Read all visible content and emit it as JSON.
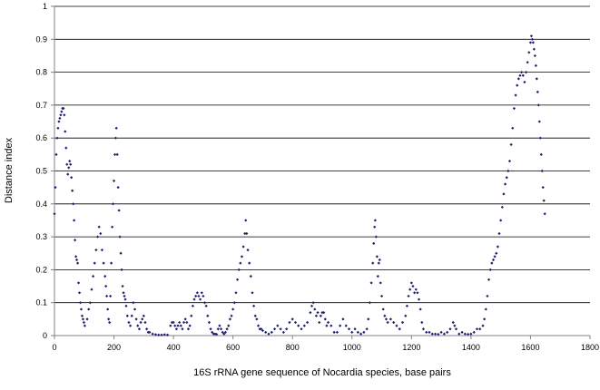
{
  "chart_data": {
    "type": "scatter",
    "title": "",
    "xlabel": "16S rRNA gene sequence of Nocardia species, base pairs",
    "ylabel": "Distance index",
    "xlim": [
      0,
      1800
    ],
    "ylim": [
      0,
      1
    ],
    "xticks": [
      0,
      200,
      400,
      600,
      800,
      1000,
      1200,
      1400,
      1600,
      1800
    ],
    "yticks": [
      0,
      0.1,
      0.2,
      0.3,
      0.4,
      0.5,
      0.6,
      0.7,
      0.8,
      0.9,
      1
    ],
    "grid": "horizontal",
    "legend": "none",
    "marker_color": "#1a1f6e",
    "series": [
      {
        "points": [
          [
            0,
            0.37
          ],
          [
            3,
            0.45
          ],
          [
            6,
            0.55
          ],
          [
            9,
            0.6
          ],
          [
            12,
            0.63
          ],
          [
            15,
            0.65
          ],
          [
            18,
            0.66
          ],
          [
            21,
            0.67
          ],
          [
            24,
            0.68
          ],
          [
            27,
            0.69
          ],
          [
            30,
            0.69
          ],
          [
            33,
            0.67
          ],
          [
            36,
            0.62
          ],
          [
            39,
            0.57
          ],
          [
            42,
            0.52
          ],
          [
            45,
            0.49
          ],
          [
            48,
            0.51
          ],
          [
            51,
            0.53
          ],
          [
            54,
            0.52
          ],
          [
            57,
            0.48
          ],
          [
            60,
            0.44
          ],
          [
            63,
            0.4
          ],
          [
            66,
            0.35
          ],
          [
            69,
            0.29
          ],
          [
            72,
            0.24
          ],
          [
            75,
            0.23
          ],
          [
            78,
            0.22
          ],
          [
            81,
            0.16
          ],
          [
            84,
            0.13
          ],
          [
            87,
            0.1
          ],
          [
            90,
            0.08
          ],
          [
            93,
            0.06
          ],
          [
            96,
            0.05
          ],
          [
            99,
            0.04
          ],
          [
            102,
            0.03
          ],
          [
            110,
            0.05
          ],
          [
            115,
            0.08
          ],
          [
            120,
            0.1
          ],
          [
            125,
            0.14
          ],
          [
            130,
            0.18
          ],
          [
            135,
            0.22
          ],
          [
            140,
            0.26
          ],
          [
            145,
            0.3
          ],
          [
            150,
            0.33
          ],
          [
            155,
            0.31
          ],
          [
            160,
            0.26
          ],
          [
            165,
            0.22
          ],
          [
            170,
            0.18
          ],
          [
            173,
            0.15
          ],
          [
            176,
            0.12
          ],
          [
            179,
            0.08
          ],
          [
            182,
            0.05
          ],
          [
            185,
            0.04
          ],
          [
            188,
            0.12
          ],
          [
            191,
            0.22
          ],
          [
            194,
            0.33
          ],
          [
            197,
            0.4
          ],
          [
            200,
            0.47
          ],
          [
            203,
            0.55
          ],
          [
            206,
            0.6
          ],
          [
            208,
            0.63
          ],
          [
            211,
            0.55
          ],
          [
            214,
            0.45
          ],
          [
            217,
            0.38
          ],
          [
            220,
            0.3
          ],
          [
            223,
            0.25
          ],
          [
            226,
            0.2
          ],
          [
            229,
            0.15
          ],
          [
            232,
            0.13
          ],
          [
            235,
            0.12
          ],
          [
            238,
            0.11
          ],
          [
            241,
            0.09
          ],
          [
            245,
            0.06
          ],
          [
            250,
            0.04
          ],
          [
            255,
            0.03
          ],
          [
            260,
            0.06
          ],
          [
            265,
            0.1
          ],
          [
            270,
            0.08
          ],
          [
            275,
            0.05
          ],
          [
            280,
            0.03
          ],
          [
            285,
            0.02
          ],
          [
            290,
            0.04
          ],
          [
            295,
            0.05
          ],
          [
            300,
            0.06
          ],
          [
            305,
            0.04
          ],
          [
            310,
            0.02
          ],
          [
            315,
            0.01
          ],
          [
            320,
            0.01
          ],
          [
            330,
            0.005
          ],
          [
            340,
            0.003
          ],
          [
            350,
            0.002
          ],
          [
            360,
            0.002
          ],
          [
            370,
            0.003
          ],
          [
            380,
            0.002
          ],
          [
            390,
            0.03
          ],
          [
            395,
            0.04
          ],
          [
            400,
            0.04
          ],
          [
            405,
            0.03
          ],
          [
            410,
            0.02
          ],
          [
            415,
            0.03
          ],
          [
            420,
            0.04
          ],
          [
            425,
            0.03
          ],
          [
            430,
            0.02
          ],
          [
            435,
            0.04
          ],
          [
            440,
            0.05
          ],
          [
            445,
            0.04
          ],
          [
            450,
            0.02
          ],
          [
            455,
            0.03
          ],
          [
            460,
            0.06
          ],
          [
            465,
            0.09
          ],
          [
            470,
            0.11
          ],
          [
            475,
            0.12
          ],
          [
            480,
            0.13
          ],
          [
            485,
            0.12
          ],
          [
            490,
            0.11
          ],
          [
            495,
            0.13
          ],
          [
            500,
            0.12
          ],
          [
            505,
            0.1
          ],
          [
            510,
            0.09
          ],
          [
            515,
            0.06
          ],
          [
            520,
            0.04
          ],
          [
            525,
            0.02
          ],
          [
            530,
            0.01
          ],
          [
            535,
            0.005
          ],
          [
            540,
            0.005
          ],
          [
            545,
            0.004
          ],
          [
            550,
            0.02
          ],
          [
            555,
            0.03
          ],
          [
            560,
            0.02
          ],
          [
            565,
            0.01
          ],
          [
            570,
            0.005
          ],
          [
            575,
            0.01
          ],
          [
            580,
            0.02
          ],
          [
            585,
            0.03
          ],
          [
            590,
            0.05
          ],
          [
            595,
            0.06
          ],
          [
            600,
            0.08
          ],
          [
            605,
            0.1
          ],
          [
            610,
            0.13
          ],
          [
            615,
            0.17
          ],
          [
            620,
            0.2
          ],
          [
            625,
            0.22
          ],
          [
            630,
            0.24
          ],
          [
            635,
            0.27
          ],
          [
            640,
            0.31
          ],
          [
            643,
            0.35
          ],
          [
            646,
            0.31
          ],
          [
            650,
            0.26
          ],
          [
            655,
            0.22
          ],
          [
            660,
            0.18
          ],
          [
            665,
            0.13
          ],
          [
            670,
            0.09
          ],
          [
            675,
            0.06
          ],
          [
            680,
            0.05
          ],
          [
            685,
            0.03
          ],
          [
            690,
            0.02
          ],
          [
            695,
            0.02
          ],
          [
            700,
            0.015
          ],
          [
            710,
            0.01
          ],
          [
            720,
            0.005
          ],
          [
            730,
            0.01
          ],
          [
            740,
            0.02
          ],
          [
            750,
            0.03
          ],
          [
            760,
            0.02
          ],
          [
            770,
            0.01
          ],
          [
            780,
            0.02
          ],
          [
            790,
            0.04
          ],
          [
            800,
            0.05
          ],
          [
            810,
            0.04
          ],
          [
            820,
            0.03
          ],
          [
            830,
            0.02
          ],
          [
            840,
            0.03
          ],
          [
            850,
            0.04
          ],
          [
            860,
            0.07
          ],
          [
            865,
            0.09
          ],
          [
            870,
            0.1
          ],
          [
            875,
            0.08
          ],
          [
            880,
            0.06
          ],
          [
            885,
            0.07
          ],
          [
            890,
            0.04
          ],
          [
            895,
            0.06
          ],
          [
            900,
            0.07
          ],
          [
            905,
            0.07
          ],
          [
            910,
            0.05
          ],
          [
            915,
            0.03
          ],
          [
            920,
            0.04
          ],
          [
            930,
            0.03
          ],
          [
            940,
            0.01
          ],
          [
            950,
            0.01
          ],
          [
            960,
            0.03
          ],
          [
            970,
            0.05
          ],
          [
            980,
            0.03
          ],
          [
            990,
            0.02
          ],
          [
            1000,
            0.01
          ],
          [
            1010,
            0.02
          ],
          [
            1020,
            0.01
          ],
          [
            1030,
            0.005
          ],
          [
            1040,
            0.01
          ],
          [
            1050,
            0.02
          ],
          [
            1055,
            0.05
          ],
          [
            1060,
            0.1
          ],
          [
            1065,
            0.16
          ],
          [
            1070,
            0.22
          ],
          [
            1073,
            0.28
          ],
          [
            1076,
            0.33
          ],
          [
            1078,
            0.35
          ],
          [
            1081,
            0.3
          ],
          [
            1084,
            0.24
          ],
          [
            1087,
            0.18
          ],
          [
            1090,
            0.22
          ],
          [
            1093,
            0.23
          ],
          [
            1096,
            0.16
          ],
          [
            1100,
            0.12
          ],
          [
            1105,
            0.08
          ],
          [
            1110,
            0.06
          ],
          [
            1115,
            0.05
          ],
          [
            1120,
            0.04
          ],
          [
            1130,
            0.05
          ],
          [
            1140,
            0.04
          ],
          [
            1150,
            0.03
          ],
          [
            1160,
            0.02
          ],
          [
            1170,
            0.04
          ],
          [
            1180,
            0.06
          ],
          [
            1185,
            0.09
          ],
          [
            1190,
            0.12
          ],
          [
            1195,
            0.14
          ],
          [
            1200,
            0.16
          ],
          [
            1205,
            0.15
          ],
          [
            1210,
            0.13
          ],
          [
            1215,
            0.14
          ],
          [
            1220,
            0.13
          ],
          [
            1225,
            0.11
          ],
          [
            1230,
            0.08
          ],
          [
            1235,
            0.04
          ],
          [
            1240,
            0.02
          ],
          [
            1250,
            0.01
          ],
          [
            1260,
            0.01
          ],
          [
            1270,
            0.005
          ],
          [
            1280,
            0.005
          ],
          [
            1290,
            0.004
          ],
          [
            1300,
            0.01
          ],
          [
            1310,
            0.005
          ],
          [
            1320,
            0.01
          ],
          [
            1330,
            0.02
          ],
          [
            1340,
            0.04
          ],
          [
            1345,
            0.03
          ],
          [
            1350,
            0.02
          ],
          [
            1360,
            0.005
          ],
          [
            1370,
            0.01
          ],
          [
            1380,
            0.005
          ],
          [
            1390,
            0.004
          ],
          [
            1400,
            0.005
          ],
          [
            1410,
            0.01
          ],
          [
            1420,
            0.02
          ],
          [
            1430,
            0.02
          ],
          [
            1440,
            0.03
          ],
          [
            1445,
            0.05
          ],
          [
            1450,
            0.08
          ],
          [
            1455,
            0.12
          ],
          [
            1460,
            0.17
          ],
          [
            1465,
            0.2
          ],
          [
            1470,
            0.22
          ],
          [
            1475,
            0.23
          ],
          [
            1480,
            0.24
          ],
          [
            1485,
            0.25
          ],
          [
            1490,
            0.27
          ],
          [
            1495,
            0.31
          ],
          [
            1500,
            0.35
          ],
          [
            1505,
            0.39
          ],
          [
            1510,
            0.43
          ],
          [
            1515,
            0.46
          ],
          [
            1520,
            0.48
          ],
          [
            1525,
            0.5
          ],
          [
            1530,
            0.53
          ],
          [
            1535,
            0.58
          ],
          [
            1540,
            0.63
          ],
          [
            1545,
            0.69
          ],
          [
            1550,
            0.73
          ],
          [
            1555,
            0.76
          ],
          [
            1560,
            0.78
          ],
          [
            1565,
            0.79
          ],
          [
            1570,
            0.8
          ],
          [
            1575,
            0.79
          ],
          [
            1580,
            0.77
          ],
          [
            1585,
            0.8
          ],
          [
            1590,
            0.83
          ],
          [
            1595,
            0.86
          ],
          [
            1600,
            0.89
          ],
          [
            1603,
            0.91
          ],
          [
            1606,
            0.9
          ],
          [
            1609,
            0.89
          ],
          [
            1612,
            0.87
          ],
          [
            1615,
            0.85
          ],
          [
            1618,
            0.82
          ],
          [
            1621,
            0.78
          ],
          [
            1624,
            0.74
          ],
          [
            1627,
            0.7
          ],
          [
            1630,
            0.65
          ],
          [
            1633,
            0.6
          ],
          [
            1636,
            0.55
          ],
          [
            1639,
            0.5
          ],
          [
            1642,
            0.45
          ],
          [
            1645,
            0.41
          ],
          [
            1648,
            0.37
          ]
        ]
      }
    ]
  }
}
